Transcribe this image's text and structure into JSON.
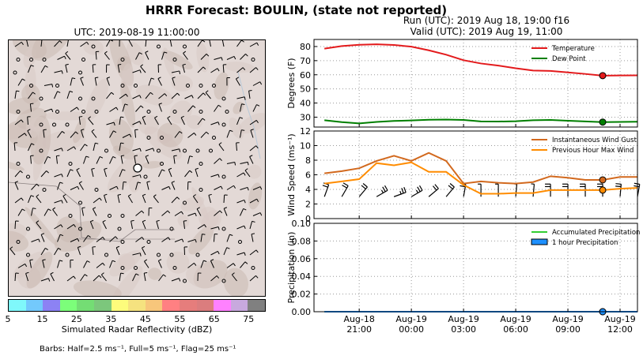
{
  "header": {
    "title": "HRRR Forecast: BOULIN, (state not reported)",
    "run": "Run (UTC): 2019 Aug 18, 19:00 f16",
    "valid": "Valid (UTC): 2019 Aug 19, 11:00"
  },
  "map": {
    "title": "UTC: 2019-08-19 11:00:00",
    "background_color": "#e3d9d6",
    "station_marker": "open-circle"
  },
  "colorbar": {
    "label": "Simulated Radar Reflectivity (dBZ)",
    "ticks": [
      "5",
      "15",
      "25",
      "35",
      "45",
      "55",
      "65",
      "75"
    ],
    "colors": [
      "#7ff8fb",
      "#73c9fc",
      "#8c82f4",
      "#7cfe7a",
      "#74dd74",
      "#7cc77c",
      "#fdfc7c",
      "#f5e27f",
      "#f7c67b",
      "#ff8082",
      "#e67d7c",
      "#db7d7e",
      "#ff81ff",
      "#c8a9de",
      "#808080"
    ]
  },
  "barb_note": "Barbs: Half=2.5 ms⁻¹, Full=5 ms⁻¹, Flag=25 ms⁻¹",
  "chart_data": [
    {
      "type": "line",
      "ylabel": "Degrees (F)",
      "ylim": [
        23,
        85
      ],
      "yticks": [
        30,
        40,
        50,
        60,
        70,
        80
      ],
      "x_hours": [
        0,
        1,
        2,
        3,
        4,
        5,
        6,
        7,
        8,
        9,
        10,
        11,
        12,
        13,
        14,
        15,
        16,
        17,
        18
      ],
      "series": [
        {
          "name": "Temperature",
          "color": "#e31a1c",
          "values": [
            78.5,
            80.3,
            81.2,
            81.6,
            81.1,
            79.9,
            77.3,
            74.2,
            70.3,
            68.0,
            66.5,
            64.6,
            63.0,
            62.7,
            61.7,
            60.6,
            59.4,
            59.5,
            59.6
          ]
        },
        {
          "name": "Dew Point",
          "color": "#007f00",
          "values": [
            27.8,
            26.5,
            25.6,
            26.6,
            27.3,
            27.7,
            28.2,
            28.3,
            28.0,
            27.0,
            26.9,
            27.1,
            27.8,
            28.0,
            27.5,
            27.0,
            26.5,
            26.6,
            26.8
          ]
        }
      ],
      "highlight_hour": 16,
      "legend": "top-right"
    },
    {
      "type": "line",
      "ylabel": "Wind Speed (ms⁻¹)",
      "ylim": [
        0,
        12
      ],
      "yticks": [
        0,
        2,
        4,
        6,
        8,
        10,
        12
      ],
      "x_hours": [
        0,
        1,
        2,
        3,
        4,
        5,
        6,
        7,
        8,
        9,
        10,
        11,
        12,
        13,
        14,
        15,
        16,
        17,
        18
      ],
      "series": [
        {
          "name": "Instantaneous Wind Gust",
          "color": "#d2691e",
          "values": [
            6.2,
            6.5,
            6.9,
            7.9,
            8.6,
            7.9,
            9.0,
            7.9,
            4.8,
            5.1,
            4.9,
            4.8,
            5.0,
            5.8,
            5.6,
            5.3,
            5.3,
            5.7,
            5.7
          ]
        },
        {
          "name": "Previous Hour Max Wind",
          "color": "#ff8c00",
          "values": [
            4.8,
            5.1,
            5.4,
            7.6,
            7.3,
            7.7,
            6.4,
            6.4,
            4.6,
            3.4,
            3.4,
            3.5,
            3.5,
            3.9,
            3.9,
            3.9,
            3.9,
            4.1,
            4.2
          ]
        }
      ],
      "highlight_hour": 16,
      "legend": "top-right"
    },
    {
      "type": "line",
      "ylabel": "Precipitation (in)",
      "ylim": [
        0,
        0.1
      ],
      "yticks": [
        "0.00",
        "0.02",
        "0.04",
        "0.06",
        "0.08",
        "0.10"
      ],
      "x_hours": [
        0,
        1,
        2,
        3,
        4,
        5,
        6,
        7,
        8,
        9,
        10,
        11,
        12,
        13,
        14,
        15,
        16,
        17,
        18
      ],
      "series": [
        {
          "name": "Accumulated Precipitation",
          "color": "#32cd32",
          "values": [
            0,
            0,
            0,
            0,
            0,
            0,
            0,
            0,
            0,
            0,
            0,
            0,
            0,
            0,
            0,
            0,
            0,
            0,
            0
          ]
        },
        {
          "name": "1 hour Precipitation",
          "color": "#1e90ff",
          "fill": true,
          "values": [
            0,
            0,
            0,
            0,
            0,
            0,
            0,
            0,
            0,
            0,
            0,
            0,
            0,
            0,
            0,
            0,
            0,
            0,
            0
          ]
        }
      ],
      "highlight_hour": 16,
      "legend": "top-right"
    }
  ],
  "x_axis": {
    "ticks": [
      {
        "hour": 2,
        "label1": "Aug-18",
        "label2": "21:00"
      },
      {
        "hour": 5,
        "label1": "Aug-19",
        "label2": "00:00"
      },
      {
        "hour": 8,
        "label1": "Aug-19",
        "label2": "03:00"
      },
      {
        "hour": 11,
        "label1": "Aug-19",
        "label2": "06:00"
      },
      {
        "hour": 14,
        "label1": "Aug-19",
        "label2": "09:00"
      },
      {
        "hour": 17,
        "label1": "Aug-19",
        "label2": "12:00"
      }
    ],
    "xlim": [
      -0.6,
      18.0
    ]
  },
  "wind_barbs_panel": [
    {
      "hour": 0,
      "speed": 4,
      "dir": 200
    },
    {
      "hour": 1,
      "speed": 5,
      "dir": 210
    },
    {
      "hour": 2,
      "speed": 6,
      "dir": 220
    },
    {
      "hour": 3,
      "speed": 7,
      "dir": 240
    },
    {
      "hour": 4,
      "speed": 7,
      "dir": 250
    },
    {
      "hour": 5,
      "speed": 7,
      "dir": 240
    },
    {
      "hour": 6,
      "speed": 6,
      "dir": 230
    },
    {
      "hour": 7,
      "speed": 5,
      "dir": 220
    },
    {
      "hour": 8,
      "speed": 4,
      "dir": 190
    },
    {
      "hour": 9,
      "speed": 3,
      "dir": 180
    },
    {
      "hour": 10,
      "speed": 3,
      "dir": 180
    },
    {
      "hour": 11,
      "speed": 3,
      "dir": 185
    },
    {
      "hour": 12,
      "speed": 3,
      "dir": 185
    },
    {
      "hour": 13,
      "speed": 4,
      "dir": 180
    },
    {
      "hour": 14,
      "speed": 4,
      "dir": 180
    },
    {
      "hour": 15,
      "speed": 4,
      "dir": 180
    },
    {
      "hour": 16,
      "speed": 4,
      "dir": 180
    },
    {
      "hour": 17,
      "speed": 4,
      "dir": 185
    },
    {
      "hour": 18,
      "speed": 4,
      "dir": 190
    }
  ]
}
